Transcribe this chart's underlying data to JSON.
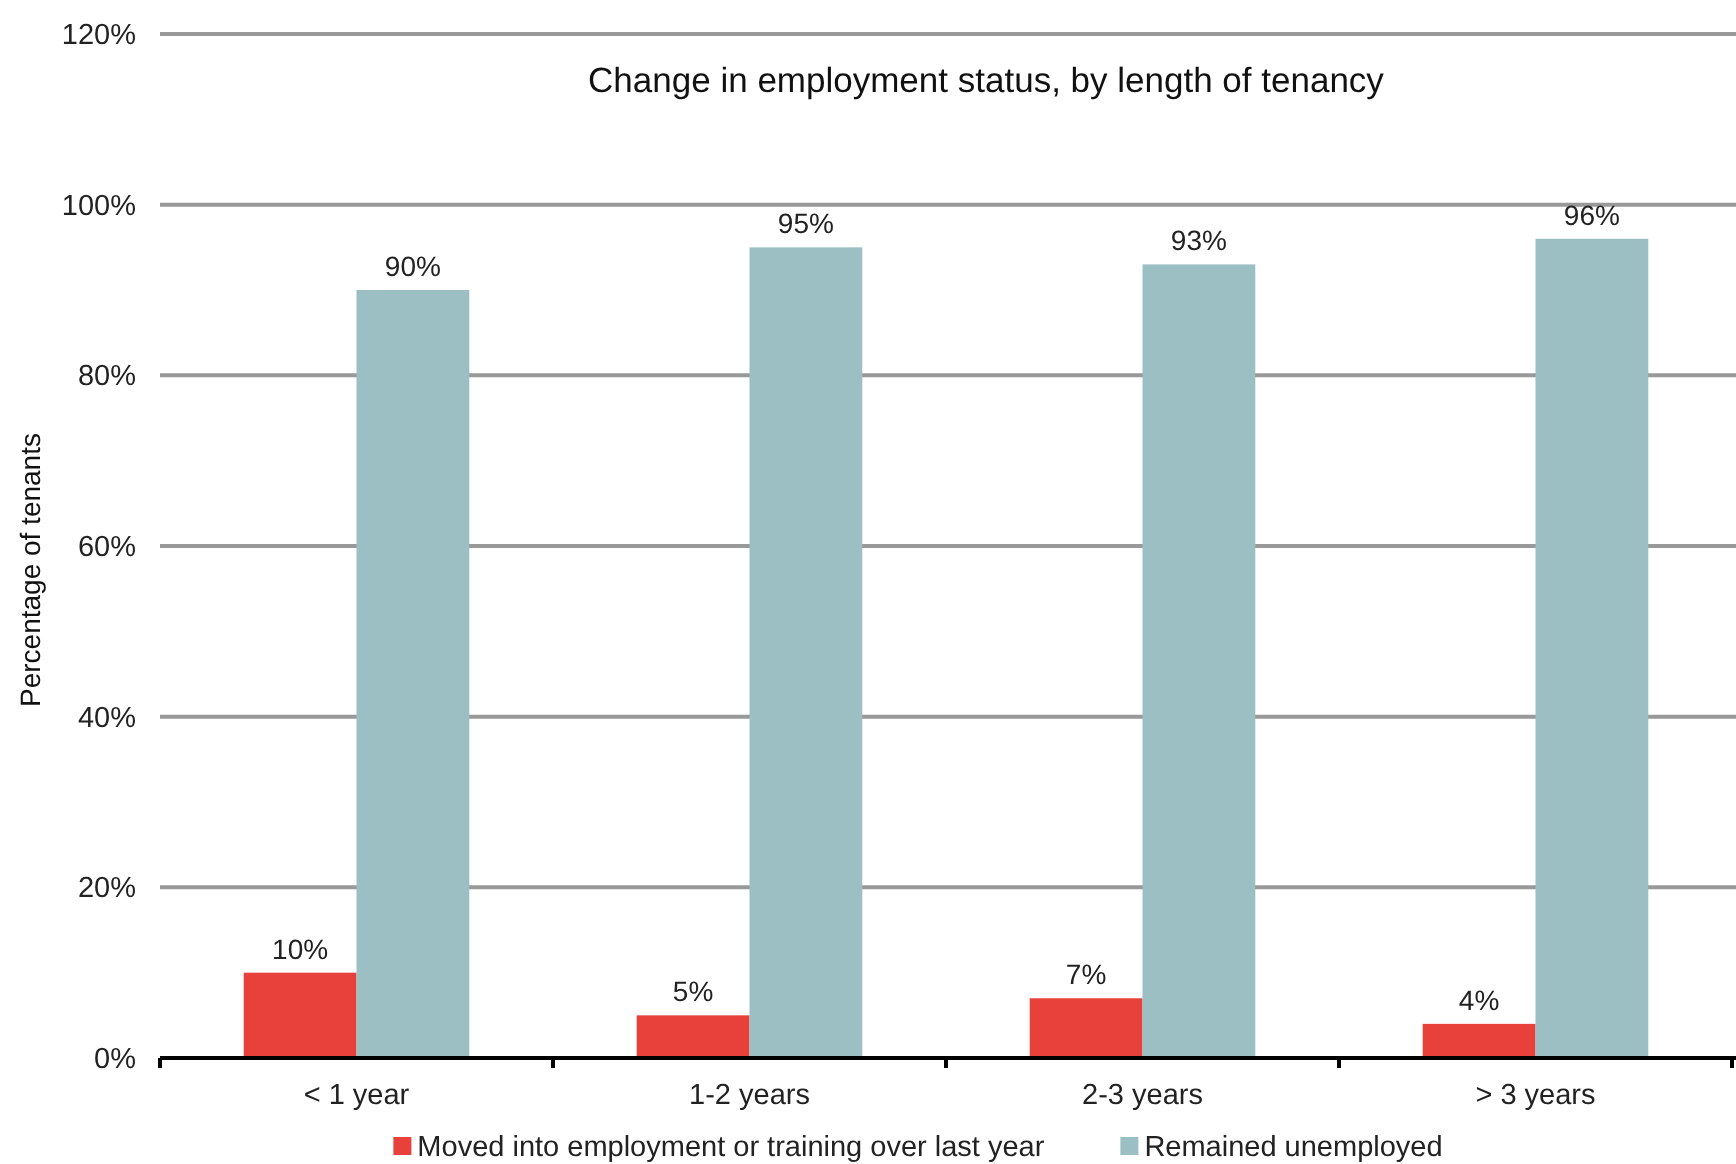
{
  "chart_data": {
    "type": "bar",
    "title": "Change in employment status, by length of tenancy",
    "ylabel": "Percentage of tenants",
    "categories": [
      "< 1 year",
      "1-2 years",
      "2-3 years",
      "> 3 years"
    ],
    "series": [
      {
        "name": "Moved into employment or training over last year",
        "color": "#e8403a",
        "values": [
          10,
          5,
          7,
          4
        ],
        "value_labels": [
          "10%",
          "5%",
          "7%",
          "4%"
        ]
      },
      {
        "name": "Remained unemployed",
        "color": "#9bbfc2",
        "values": [
          90,
          95,
          93,
          96
        ],
        "value_labels": [
          "90%",
          "95%",
          "93%",
          "96%"
        ]
      }
    ],
    "ylim": [
      0,
      120
    ],
    "yticks": [
      {
        "value": 0,
        "label": "0%"
      },
      {
        "value": 20,
        "label": "20%"
      },
      {
        "value": 40,
        "label": "40%"
      },
      {
        "value": 60,
        "label": "60%"
      },
      {
        "value": 80,
        "label": "80%"
      },
      {
        "value": 100,
        "label": "100%"
      },
      {
        "value": 120,
        "label": "120%"
      }
    ],
    "grid": "y",
    "legend": "bottom"
  }
}
